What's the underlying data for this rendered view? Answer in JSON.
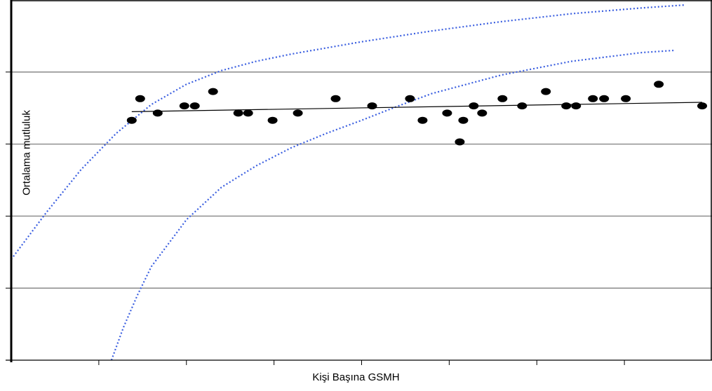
{
  "chart_data": {
    "type": "scatter",
    "title": "",
    "xlabel": "Kişi Başına GSMH",
    "ylabel": "Ortalama mutluluk",
    "xlim": [
      0,
      1000
    ],
    "ylim": [
      0,
      5
    ],
    "grid": true,
    "points": [
      {
        "x": 172,
        "y": 3.33
      },
      {
        "x": 184,
        "y": 3.63
      },
      {
        "x": 209,
        "y": 3.43
      },
      {
        "x": 247,
        "y": 3.53
      },
      {
        "x": 262,
        "y": 3.53
      },
      {
        "x": 288,
        "y": 3.73
      },
      {
        "x": 324,
        "y": 3.43
      },
      {
        "x": 338,
        "y": 3.43
      },
      {
        "x": 373,
        "y": 3.33
      },
      {
        "x": 409,
        "y": 3.43
      },
      {
        "x": 463,
        "y": 3.63
      },
      {
        "x": 515,
        "y": 3.53
      },
      {
        "x": 569,
        "y": 3.63
      },
      {
        "x": 587,
        "y": 3.33
      },
      {
        "x": 622,
        "y": 3.43
      },
      {
        "x": 645,
        "y": 3.33
      },
      {
        "x": 640,
        "y": 3.03
      },
      {
        "x": 660,
        "y": 3.53
      },
      {
        "x": 672,
        "y": 3.43
      },
      {
        "x": 701,
        "y": 3.63
      },
      {
        "x": 729,
        "y": 3.53
      },
      {
        "x": 763,
        "y": 3.73
      },
      {
        "x": 792,
        "y": 3.53
      },
      {
        "x": 806,
        "y": 3.53
      },
      {
        "x": 830,
        "y": 3.63
      },
      {
        "x": 846,
        "y": 3.63
      },
      {
        "x": 877,
        "y": 3.63
      },
      {
        "x": 924,
        "y": 3.83
      },
      {
        "x": 986,
        "y": 3.53
      }
    ],
    "trend": [
      {
        "x": 172,
        "y": 3.45
      },
      {
        "x": 986,
        "y": 3.58
      }
    ],
    "curves": [
      {
        "color": "#3b5fe0",
        "points": [
          {
            "x": 0,
            "y": 1.4
          },
          {
            "x": 50,
            "y": 2.05
          },
          {
            "x": 100,
            "y": 2.65
          },
          {
            "x": 150,
            "y": 3.15
          },
          {
            "x": 200,
            "y": 3.55
          },
          {
            "x": 250,
            "y": 3.83
          },
          {
            "x": 300,
            "y": 4.02
          },
          {
            "x": 350,
            "y": 4.15
          },
          {
            "x": 400,
            "y": 4.25
          },
          {
            "x": 500,
            "y": 4.42
          },
          {
            "x": 600,
            "y": 4.57
          },
          {
            "x": 700,
            "y": 4.7
          },
          {
            "x": 800,
            "y": 4.81
          },
          {
            "x": 900,
            "y": 4.89
          },
          {
            "x": 960,
            "y": 4.93
          }
        ]
      },
      {
        "color": "#3b5fe0",
        "points": [
          {
            "x": 143,
            "y": 0.0
          },
          {
            "x": 160,
            "y": 0.45
          },
          {
            "x": 180,
            "y": 0.9
          },
          {
            "x": 200,
            "y": 1.3
          },
          {
            "x": 250,
            "y": 1.95
          },
          {
            "x": 300,
            "y": 2.4
          },
          {
            "x": 350,
            "y": 2.7
          },
          {
            "x": 400,
            "y": 2.95
          },
          {
            "x": 450,
            "y": 3.15
          },
          {
            "x": 500,
            "y": 3.33
          },
          {
            "x": 550,
            "y": 3.52
          },
          {
            "x": 600,
            "y": 3.7
          },
          {
            "x": 700,
            "y": 3.96
          },
          {
            "x": 800,
            "y": 4.15
          },
          {
            "x": 900,
            "y": 4.27
          },
          {
            "x": 945,
            "y": 4.3
          }
        ]
      }
    ],
    "colors": {
      "points": "#000000",
      "trend": "#000000",
      "grid": "#7f7f7f",
      "curve": "#3b5fe0"
    }
  }
}
